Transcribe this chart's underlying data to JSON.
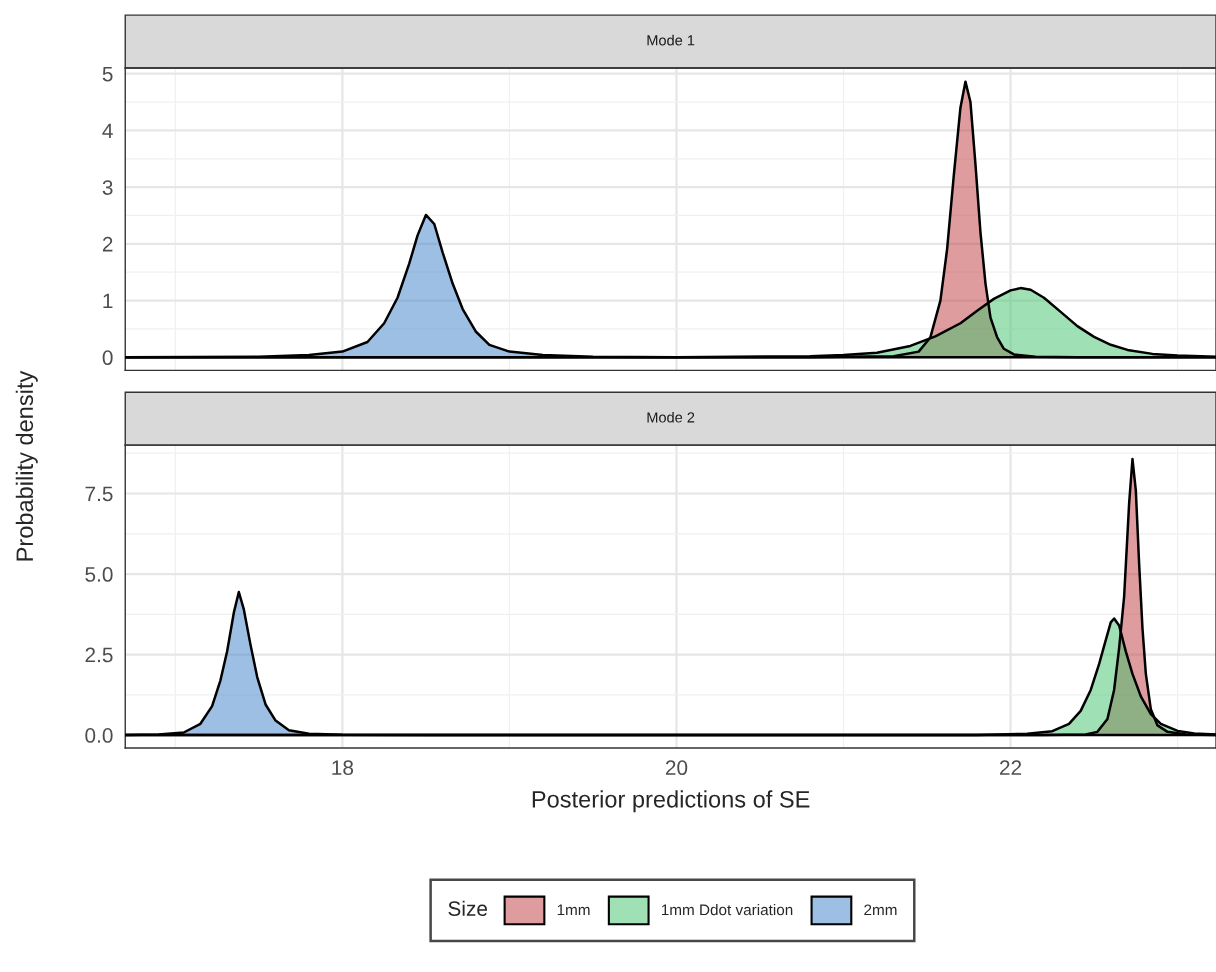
{
  "chart_data": [
    {
      "type": "area",
      "title": "Mode 1",
      "ylabel": "Probability density",
      "legend_title": "Size",
      "legend": "bottom",
      "xlim": [
        16.7,
        23.23
      ],
      "xticks": [
        18,
        20,
        22
      ],
      "ylim": [
        -0.23,
        5.1
      ],
      "yticks": [
        0,
        1,
        2,
        3,
        4,
        5
      ],
      "grid": true,
      "tick_labels": "y",
      "series": [
        {
          "name": "1mm",
          "color": "#df9c9e",
          "x": [
            16.7,
            20.8,
            21.0,
            21.3,
            21.45,
            21.52,
            21.58,
            21.62,
            21.66,
            21.7,
            21.73,
            21.76,
            21.79,
            21.82,
            21.85,
            21.88,
            21.92,
            21.96,
            22.02,
            22.15,
            22.4,
            23.23
          ],
          "values": [
            0,
            0,
            0.01,
            0.02,
            0.1,
            0.35,
            1.0,
            1.9,
            3.2,
            4.4,
            4.86,
            4.5,
            3.4,
            2.2,
            1.3,
            0.7,
            0.35,
            0.15,
            0.05,
            0.01,
            0,
            0
          ]
        },
        {
          "name": "1mm Ddot variation",
          "color": "#9fe0b5",
          "x": [
            16.7,
            20.0,
            20.8,
            21.0,
            21.2,
            21.4,
            21.55,
            21.7,
            21.8,
            21.9,
            22.0,
            22.06,
            22.12,
            22.2,
            22.3,
            22.4,
            22.5,
            22.6,
            22.7,
            22.85,
            23.0,
            23.23
          ],
          "values": [
            0,
            0,
            0.02,
            0.04,
            0.08,
            0.2,
            0.37,
            0.6,
            0.82,
            1.03,
            1.18,
            1.22,
            1.19,
            1.05,
            0.8,
            0.55,
            0.36,
            0.22,
            0.13,
            0.06,
            0.03,
            0.01
          ]
        },
        {
          "name": "2mm",
          "color": "#9dbfe3",
          "x": [
            16.7,
            17.5,
            17.8,
            18.0,
            18.15,
            18.25,
            18.33,
            18.4,
            18.45,
            18.5,
            18.55,
            18.6,
            18.66,
            18.72,
            18.8,
            18.88,
            19.0,
            19.2,
            19.5,
            20.0,
            23.23
          ],
          "values": [
            0,
            0.01,
            0.04,
            0.1,
            0.27,
            0.6,
            1.05,
            1.65,
            2.15,
            2.51,
            2.35,
            1.85,
            1.3,
            0.85,
            0.45,
            0.22,
            0.1,
            0.04,
            0.01,
            0,
            0
          ]
        }
      ]
    },
    {
      "type": "area",
      "title": "Mode 2",
      "xlabel": "Posterior predictions of SE",
      "xlim": [
        16.7,
        23.23
      ],
      "xticks": [
        18,
        20,
        22
      ],
      "ylim": [
        -0.4,
        9.0
      ],
      "yticks": [
        {
          "value": 0,
          "label": "0.0"
        },
        2.5,
        {
          "value": 5,
          "label": "5.0"
        },
        7.5
      ],
      "grid": true,
      "series": [
        {
          "color": "#df9c9e",
          "x": [
            16.7,
            22.2,
            22.45,
            22.52,
            22.58,
            22.62,
            22.65,
            22.68,
            22.71,
            22.73,
            22.75,
            22.77,
            22.79,
            22.81,
            22.84,
            22.88,
            22.94,
            23.05,
            23.23
          ],
          "values": [
            0,
            0,
            0.02,
            0.1,
            0.5,
            1.4,
            2.7,
            4.3,
            7.2,
            8.57,
            7.6,
            5.3,
            3.3,
            1.9,
            0.8,
            0.3,
            0.1,
            0.02,
            0
          ]
        },
        {
          "color": "#9fe0b5",
          "x": [
            16.7,
            21.8,
            22.1,
            22.25,
            22.35,
            22.42,
            22.48,
            22.53,
            22.57,
            22.6,
            22.62,
            22.65,
            22.69,
            22.73,
            22.78,
            22.84,
            22.9,
            23.0,
            23.1,
            23.23
          ],
          "values": [
            0,
            0,
            0.04,
            0.12,
            0.35,
            0.75,
            1.4,
            2.2,
            2.95,
            3.5,
            3.62,
            3.4,
            2.6,
            1.9,
            1.2,
            0.65,
            0.35,
            0.13,
            0.05,
            0.02
          ]
        },
        {
          "color": "#9dbfe3",
          "x": [
            16.7,
            16.9,
            17.05,
            17.15,
            17.22,
            17.27,
            17.31,
            17.35,
            17.38,
            17.41,
            17.45,
            17.49,
            17.54,
            17.6,
            17.68,
            17.8,
            18.0,
            18.5,
            23.23
          ],
          "values": [
            0,
            0.02,
            0.08,
            0.35,
            0.9,
            1.7,
            2.6,
            3.8,
            4.44,
            3.9,
            2.8,
            1.8,
            0.95,
            0.45,
            0.15,
            0.04,
            0.01,
            0,
            0
          ]
        }
      ]
    }
  ]
}
